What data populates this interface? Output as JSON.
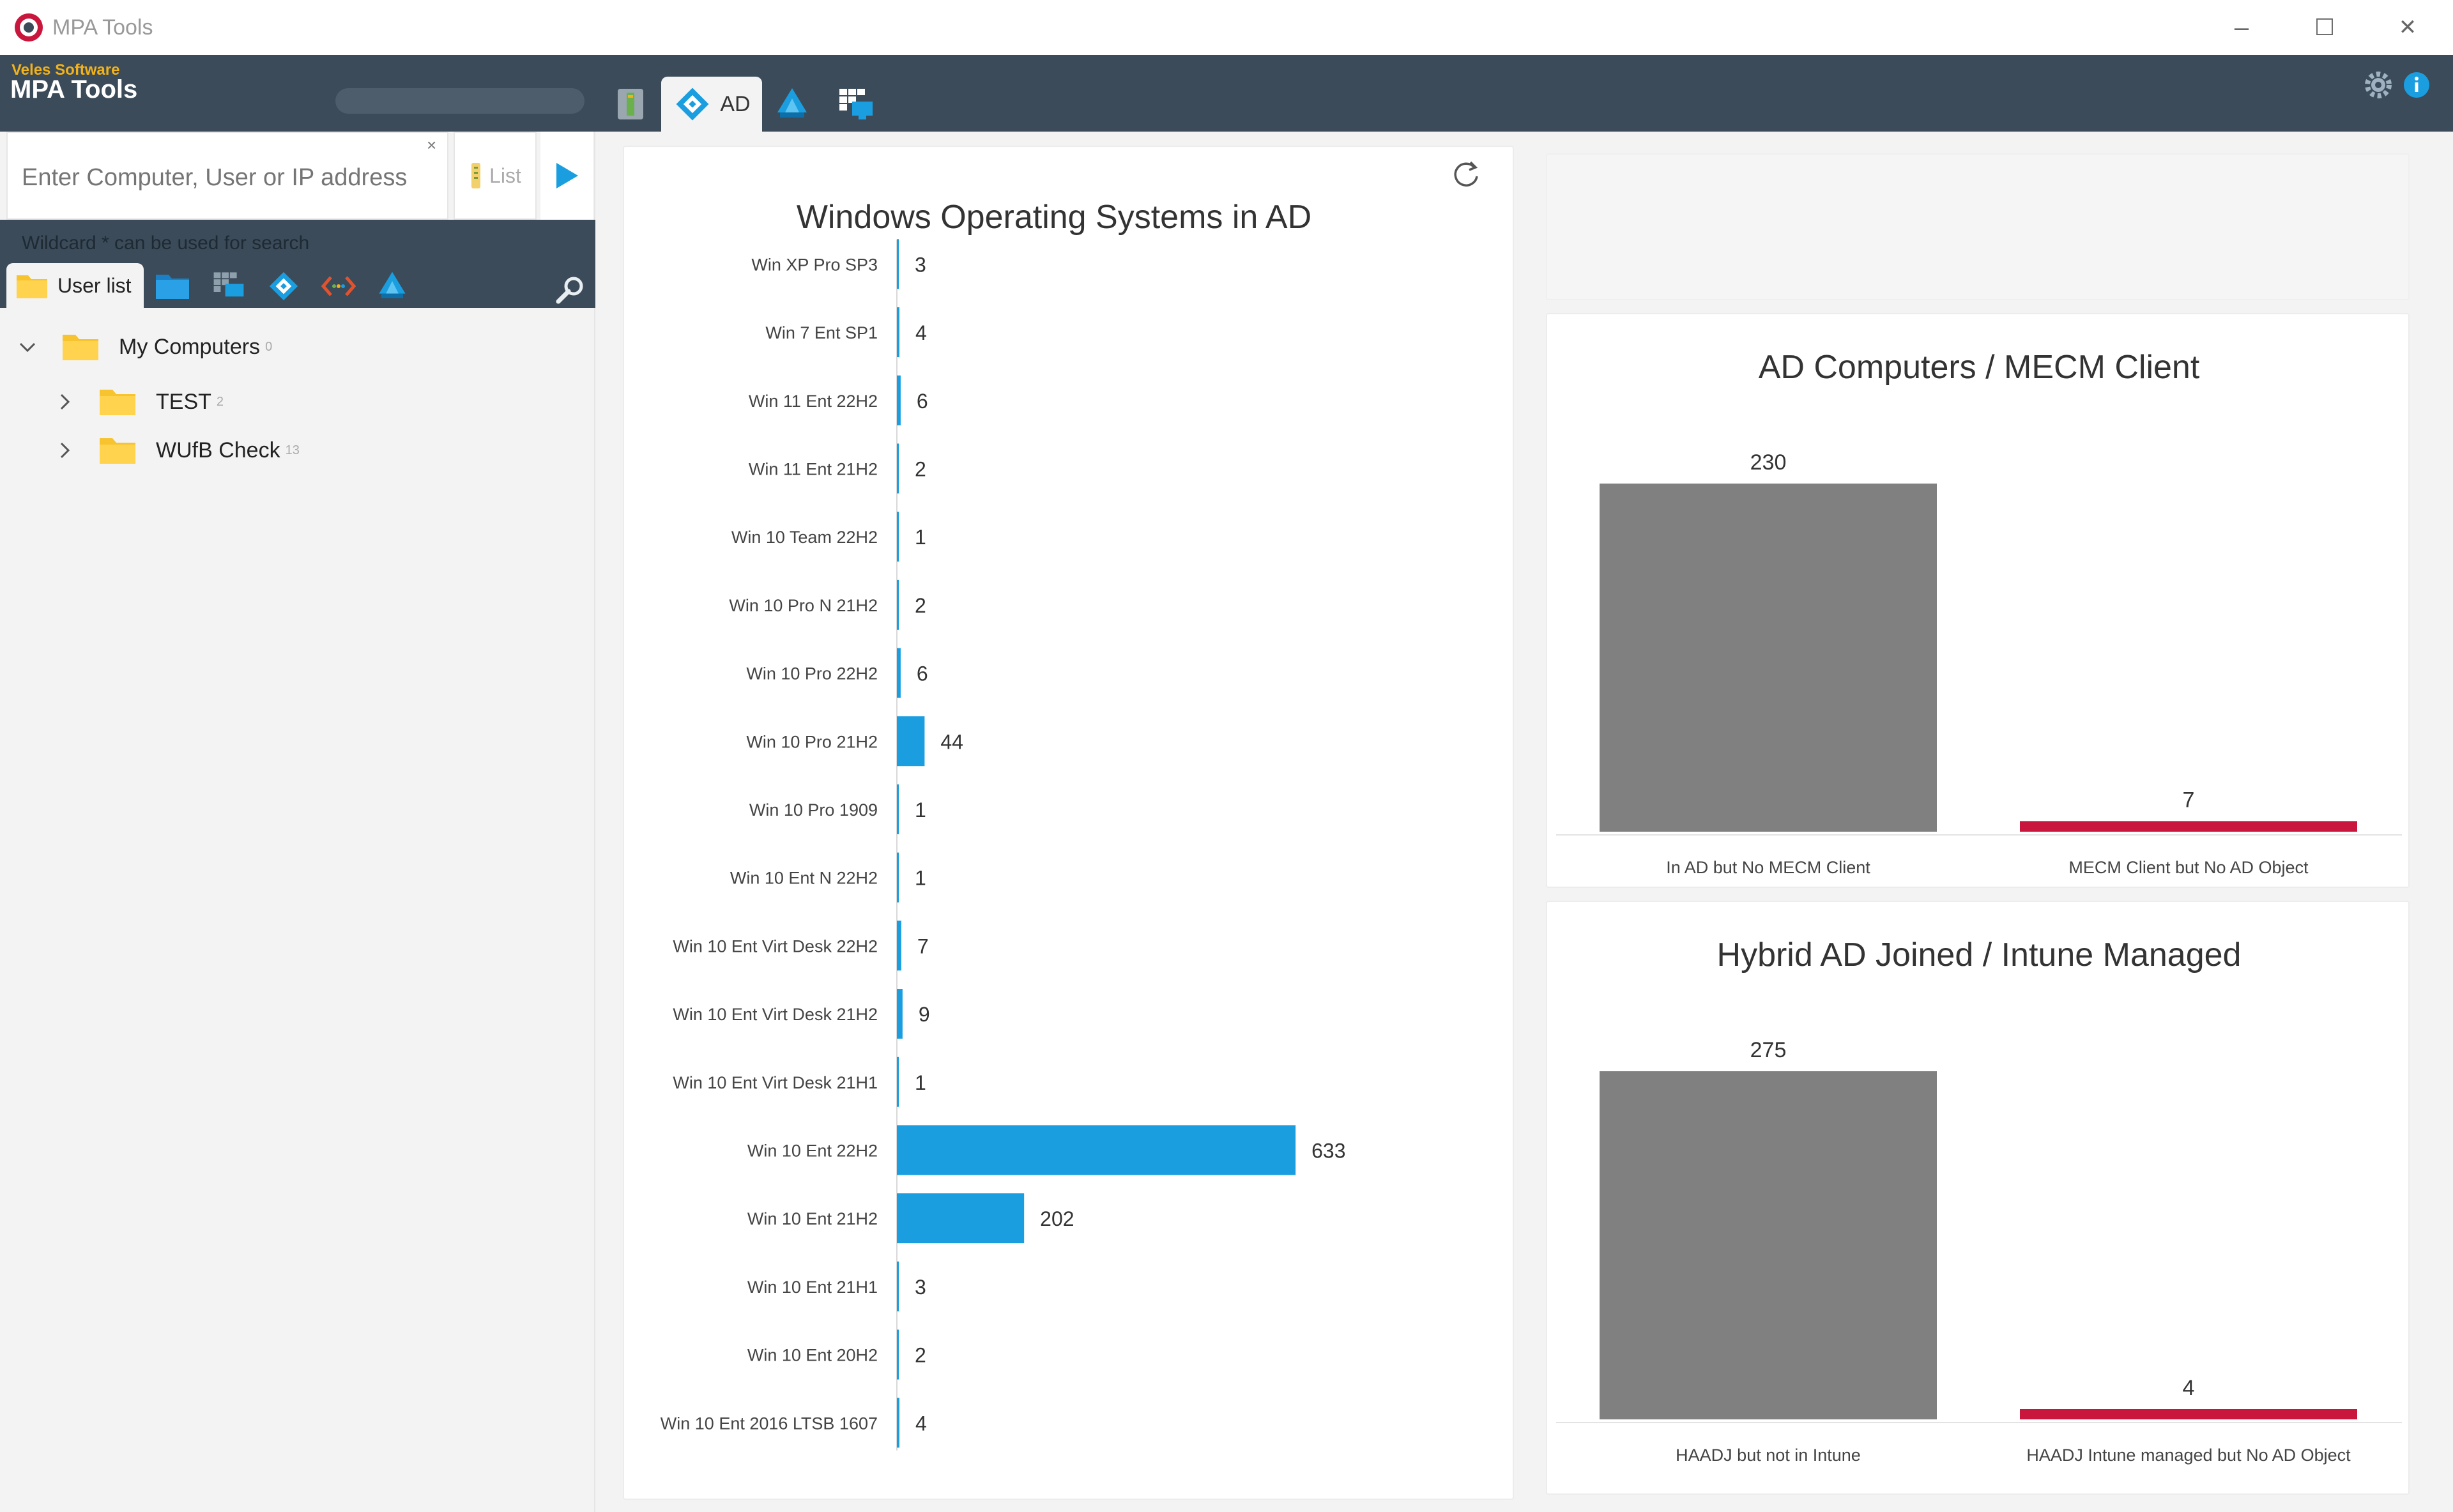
{
  "window": {
    "title": "MPA Tools",
    "controls": {
      "minimize": "–",
      "maximize": "☐",
      "close": "✕"
    }
  },
  "header": {
    "brand_small": "Veles Software",
    "brand_main": "MPA Tools",
    "tabs": [
      {
        "icon": "server-icon"
      },
      {
        "icon": "ad-diamond-icon",
        "label": "AD"
      },
      {
        "icon": "intune-icon"
      },
      {
        "icon": "grid-computer-icon"
      }
    ],
    "settings_icon": "gear-icon",
    "info_icon": "info-icon"
  },
  "search": {
    "placeholder": "Enter Computer, User or IP address",
    "clear": "×",
    "list_label": "List",
    "hint": "Wildcard * can be used for search"
  },
  "left_tabs": {
    "user_list_label": "User list",
    "icons": [
      "folder-blue-icon",
      "grid-computer-icon",
      "ad-diamond-icon",
      "code-icon",
      "intune-icon"
    ]
  },
  "tree": [
    {
      "label": "My Computers",
      "count": "0",
      "expanded": true,
      "level": 0
    },
    {
      "label": "TEST",
      "count": "2",
      "expanded": false,
      "level": 1
    },
    {
      "label": "WUfB Check",
      "count": "13",
      "expanded": false,
      "level": 1
    }
  ],
  "colors": {
    "header_bg": "#3b4b59",
    "bar_blue": "#1a9ee0",
    "bar_gray": "#808080",
    "bar_red": "#c8163c",
    "brand_orange": "#f2b21a"
  },
  "chart_data": [
    {
      "type": "bar",
      "orientation": "horizontal",
      "title": "Windows Operating Systems in AD",
      "categories": [
        "Win XP Pro  SP3",
        "Win 7 Ent  SP1",
        "Win 11 Ent 22H2",
        "Win 11 Ent 21H2",
        "Win 10 Team 22H2",
        "Win 10 Pro N 21H2",
        "Win 10 Pro 22H2",
        "Win 10 Pro 21H2",
        "Win 10 Pro 1909",
        "Win 10 Ent N 22H2",
        "Win 10 Ent  Virt Desk 22H2",
        "Win 10 Ent  Virt Desk 21H2",
        "Win 10 Ent  Virt Desk 21H1",
        "Win 10 Ent 22H2",
        "Win 10 Ent 21H2",
        "Win 10 Ent 21H1",
        "Win 10 Ent 20H2",
        "Win 10 Ent 2016 LTSB 1607"
      ],
      "values": [
        3,
        4,
        6,
        2,
        1,
        2,
        6,
        44,
        1,
        1,
        7,
        9,
        1,
        633,
        202,
        3,
        2,
        4
      ],
      "color": "#1a9ee0"
    },
    {
      "type": "bar",
      "title": "AD Computers / MECM Client",
      "categories": [
        "In AD but No MECM Client",
        "MECM Client but No AD Object"
      ],
      "values": [
        230,
        7
      ],
      "colors": [
        "#808080",
        "#c8163c"
      ]
    },
    {
      "type": "bar",
      "title": "Hybrid AD Joined / Intune Managed",
      "categories": [
        "HAADJ but not in Intune",
        "HAADJ Intune managed but No AD Object"
      ],
      "values": [
        275,
        4
      ],
      "colors": [
        "#808080",
        "#c8163c"
      ]
    }
  ]
}
